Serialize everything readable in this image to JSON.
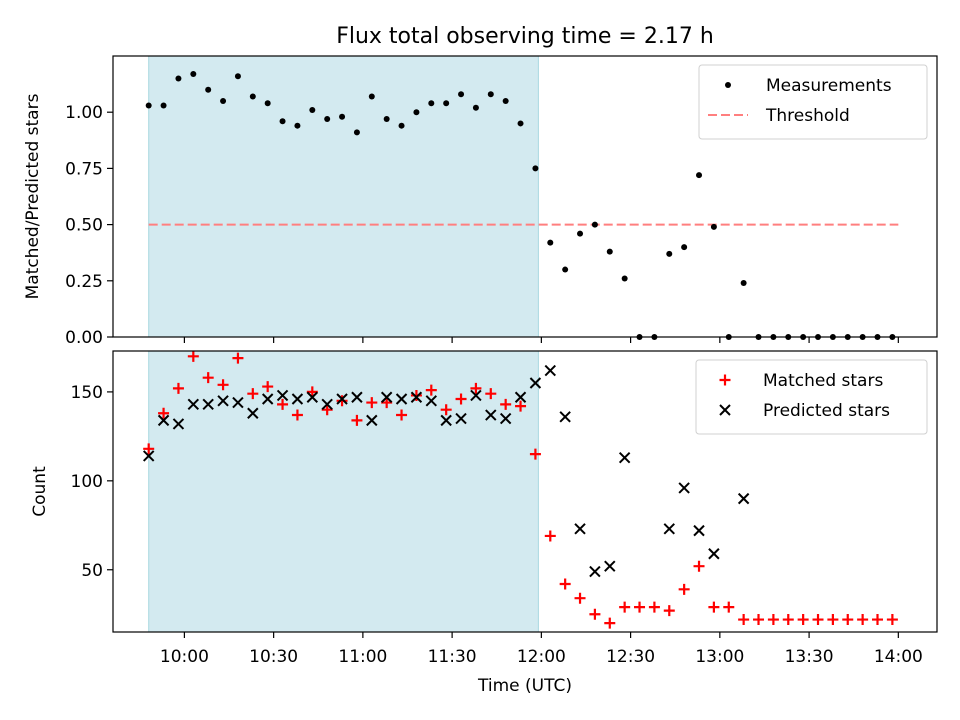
{
  "title": "Flux total observing time = 2.17 h",
  "xlabel": "Time (UTC)",
  "x_ticks": [
    "10:00",
    "10:30",
    "11:00",
    "11:30",
    "12:00",
    "12:30",
    "13:00",
    "13:30",
    "14:00"
  ],
  "colors": {
    "shade": "#d3eaf0",
    "shade_edge": "#a9d8e0",
    "measurement": "#000000",
    "threshold": "#ff7f7f",
    "matched": "#ff0000",
    "predicted": "#000000"
  },
  "chart_data": [
    {
      "type": "scatter",
      "title": "Flux total observing time = 2.17 h",
      "xlabel": "Time (UTC)",
      "ylabel": "Matched/Predicted stars",
      "xlim": [
        "09:36",
        "14:13"
      ],
      "ylim": [
        0,
        1.25
      ],
      "yticks": [
        0.0,
        0.25,
        0.5,
        0.75,
        1.0
      ],
      "ytick_labels": [
        "0.00",
        "0.25",
        "0.50",
        "0.75",
        "1.00"
      ],
      "shaded_interval": [
        "09:48",
        "11:59"
      ],
      "threshold": {
        "name": "Threshold",
        "value": 0.5,
        "x_range": [
          "09:48",
          "14:00"
        ],
        "style": "dashed"
      },
      "legend_position": "top-right",
      "series": [
        {
          "name": "Measurements",
          "marker": "dot",
          "points": [
            [
              "09:48",
              1.03
            ],
            [
              "09:53",
              1.03
            ],
            [
              "09:58",
              1.15
            ],
            [
              "10:03",
              1.17
            ],
            [
              "10:08",
              1.1
            ],
            [
              "10:13",
              1.05
            ],
            [
              "10:18",
              1.16
            ],
            [
              "10:23",
              1.07
            ],
            [
              "10:28",
              1.04
            ],
            [
              "10:33",
              0.96
            ],
            [
              "10:38",
              0.94
            ],
            [
              "10:43",
              1.01
            ],
            [
              "10:48",
              0.97
            ],
            [
              "10:53",
              0.98
            ],
            [
              "10:58",
              0.91
            ],
            [
              "11:03",
              1.07
            ],
            [
              "11:08",
              0.97
            ],
            [
              "11:13",
              0.94
            ],
            [
              "11:18",
              1.0
            ],
            [
              "11:23",
              1.04
            ],
            [
              "11:28",
              1.04
            ],
            [
              "11:33",
              1.08
            ],
            [
              "11:38",
              1.02
            ],
            [
              "11:43",
              1.08
            ],
            [
              "11:48",
              1.05
            ],
            [
              "11:53",
              0.95
            ],
            [
              "11:58",
              0.75
            ],
            [
              "12:03",
              0.42
            ],
            [
              "12:08",
              0.3
            ],
            [
              "12:13",
              0.46
            ],
            [
              "12:18",
              0.5
            ],
            [
              "12:23",
              0.38
            ],
            [
              "12:28",
              0.26
            ],
            [
              "12:33",
              0.0
            ],
            [
              "12:38",
              0.0
            ],
            [
              "12:43",
              0.37
            ],
            [
              "12:48",
              0.4
            ],
            [
              "12:53",
              0.72
            ],
            [
              "12:58",
              0.49
            ],
            [
              "13:03",
              0.0
            ],
            [
              "13:08",
              0.24
            ],
            [
              "13:13",
              0.0
            ],
            [
              "13:18",
              0.0
            ],
            [
              "13:23",
              0.0
            ],
            [
              "13:28",
              0.0
            ],
            [
              "13:33",
              0.0
            ],
            [
              "13:38",
              0.0
            ],
            [
              "13:43",
              0.0
            ],
            [
              "13:48",
              0.0
            ],
            [
              "13:53",
              0.0
            ],
            [
              "13:58",
              0.0
            ]
          ]
        }
      ]
    },
    {
      "type": "scatter",
      "xlabel": "Time (UTC)",
      "ylabel": "Count",
      "xlim": [
        "09:36",
        "14:13"
      ],
      "ylim": [
        15,
        173
      ],
      "yticks": [
        50,
        100,
        150
      ],
      "ytick_labels": [
        "50",
        "100",
        "150"
      ],
      "shaded_interval": [
        "09:48",
        "11:59"
      ],
      "legend_position": "top-right",
      "series": [
        {
          "name": "Matched stars",
          "marker": "plus",
          "points": [
            [
              "09:48",
              118
            ],
            [
              "09:53",
              138
            ],
            [
              "09:58",
              152
            ],
            [
              "10:03",
              170
            ],
            [
              "10:08",
              158
            ],
            [
              "10:13",
              154
            ],
            [
              "10:18",
              169
            ],
            [
              "10:23",
              149
            ],
            [
              "10:28",
              153
            ],
            [
              "10:33",
              143
            ],
            [
              "10:38",
              137
            ],
            [
              "10:43",
              150
            ],
            [
              "10:48",
              140
            ],
            [
              "10:53",
              145
            ],
            [
              "10:58",
              134
            ],
            [
              "11:03",
              144
            ],
            [
              "11:08",
              144
            ],
            [
              "11:13",
              137
            ],
            [
              "11:18",
              148
            ],
            [
              "11:23",
              151
            ],
            [
              "11:28",
              140
            ],
            [
              "11:33",
              146
            ],
            [
              "11:38",
              152
            ],
            [
              "11:43",
              149
            ],
            [
              "11:48",
              143
            ],
            [
              "11:53",
              142
            ],
            [
              "11:58",
              115
            ],
            [
              "12:03",
              69
            ],
            [
              "12:08",
              42
            ],
            [
              "12:13",
              34
            ],
            [
              "12:18",
              25
            ],
            [
              "12:23",
              20
            ],
            [
              "12:28",
              29
            ],
            [
              "12:33",
              29
            ],
            [
              "12:38",
              29
            ],
            [
              "12:43",
              27
            ],
            [
              "12:48",
              39
            ],
            [
              "12:53",
              52
            ],
            [
              "12:58",
              29
            ],
            [
              "13:03",
              29
            ],
            [
              "13:08",
              22
            ],
            [
              "13:13",
              22
            ],
            [
              "13:18",
              22
            ],
            [
              "13:23",
              22
            ],
            [
              "13:28",
              22
            ],
            [
              "13:33",
              22
            ],
            [
              "13:38",
              22
            ],
            [
              "13:43",
              22
            ],
            [
              "13:48",
              22
            ],
            [
              "13:53",
              22
            ],
            [
              "13:58",
              22
            ]
          ]
        },
        {
          "name": "Predicted stars",
          "marker": "x",
          "points": [
            [
              "09:48",
              114
            ],
            [
              "09:53",
              134
            ],
            [
              "09:58",
              132
            ],
            [
              "10:03",
              143
            ],
            [
              "10:08",
              143
            ],
            [
              "10:13",
              145
            ],
            [
              "10:18",
              144
            ],
            [
              "10:23",
              138
            ],
            [
              "10:28",
              146
            ],
            [
              "10:33",
              148
            ],
            [
              "10:38",
              146
            ],
            [
              "10:43",
              147
            ],
            [
              "10:48",
              143
            ],
            [
              "10:53",
              146
            ],
            [
              "10:58",
              147
            ],
            [
              "11:03",
              134
            ],
            [
              "11:08",
              147
            ],
            [
              "11:13",
              146
            ],
            [
              "11:18",
              147
            ],
            [
              "11:23",
              145
            ],
            [
              "11:28",
              134
            ],
            [
              "11:33",
              135
            ],
            [
              "11:38",
              148
            ],
            [
              "11:43",
              137
            ],
            [
              "11:48",
              135
            ],
            [
              "11:53",
              147
            ],
            [
              "11:58",
              155
            ],
            [
              "12:03",
              162
            ],
            [
              "12:08",
              136
            ],
            [
              "12:13",
              73
            ],
            [
              "12:18",
              49
            ],
            [
              "12:23",
              52
            ],
            [
              "12:28",
              113
            ],
            [
              "12:43",
              73
            ],
            [
              "12:48",
              96
            ],
            [
              "12:53",
              72
            ],
            [
              "12:58",
              59
            ],
            [
              "13:08",
              90
            ]
          ]
        }
      ]
    }
  ]
}
